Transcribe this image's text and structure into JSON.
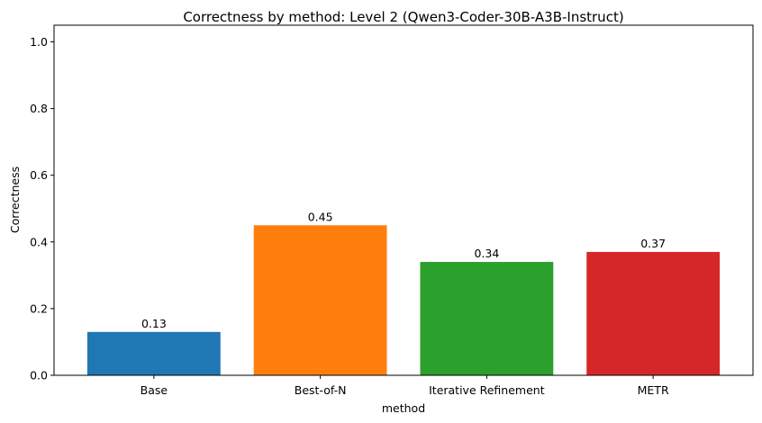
{
  "chart_data": {
    "type": "bar",
    "title": "Correctness by method: Level 2 (Qwen3-Coder-30B-A3B-Instruct)",
    "xlabel": "method",
    "ylabel": "Correctness",
    "categories": [
      "Base",
      "Best-of-N",
      "Iterative Refinement",
      "METR"
    ],
    "values": [
      0.13,
      0.45,
      0.34,
      0.37
    ],
    "value_labels": [
      "0.13",
      "0.45",
      "0.34",
      "0.37"
    ],
    "colors": [
      "#1f77b4",
      "#ff7f0e",
      "#2ca02c",
      "#d62728"
    ],
    "ylim": [
      0,
      1.05
    ],
    "yticks": [
      0.0,
      0.2,
      0.4,
      0.6,
      0.8,
      1.0
    ],
    "ytick_labels": [
      "0.0",
      "0.2",
      "0.4",
      "0.6",
      "0.8",
      "1.0"
    ],
    "grid": false,
    "legend": "none"
  }
}
